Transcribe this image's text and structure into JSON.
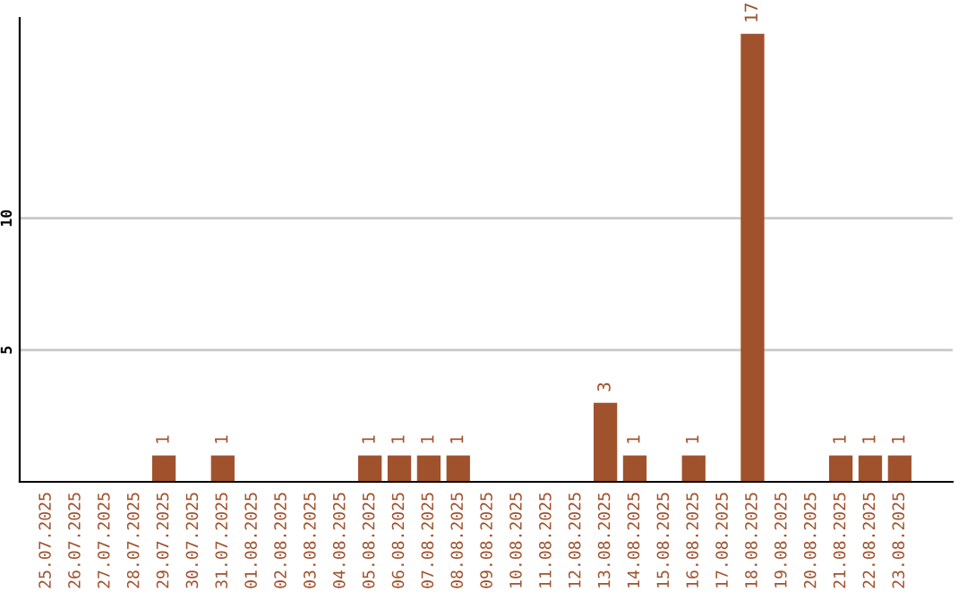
{
  "chart_data": {
    "type": "bar",
    "categories": [
      "25.07.2025",
      "26.07.2025",
      "27.07.2025",
      "28.07.2025",
      "29.07.2025",
      "30.07.2025",
      "31.07.2025",
      "01.08.2025",
      "02.08.2025",
      "03.08.2025",
      "04.08.2025",
      "05.08.2025",
      "06.08.2025",
      "07.08.2025",
      "08.08.2025",
      "09.08.2025",
      "10.08.2025",
      "11.08.2025",
      "12.08.2025",
      "13.08.2025",
      "14.08.2025",
      "15.08.2025",
      "16.08.2025",
      "17.08.2025",
      "18.08.2025",
      "19.08.2025",
      "20.08.2025",
      "21.08.2025",
      "22.08.2025",
      "23.08.2025"
    ],
    "values": [
      0,
      0,
      0,
      0,
      1,
      0,
      1,
      0,
      0,
      0,
      0,
      1,
      1,
      1,
      1,
      0,
      0,
      0,
      0,
      3,
      1,
      0,
      1,
      0,
      17,
      0,
      0,
      1,
      1,
      1
    ],
    "color": "#a0522d",
    "value_labels": [
      null,
      null,
      null,
      null,
      "1",
      null,
      "1",
      null,
      null,
      null,
      null,
      "1",
      "1",
      "1",
      "1",
      null,
      null,
      null,
      null,
      "3",
      "1",
      null,
      "1",
      null,
      "17",
      null,
      null,
      "1",
      "1",
      "1"
    ],
    "ylim": [
      0,
      17.6
    ],
    "yticks": [
      5,
      10
    ],
    "grid": "y"
  }
}
